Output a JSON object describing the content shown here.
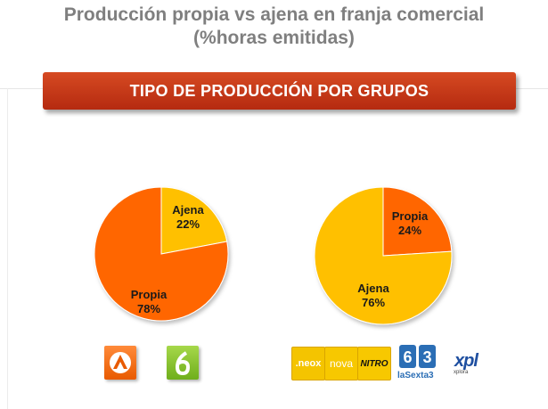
{
  "title_line1": "Producción propia vs ajena en franja comercial",
  "title_line2": "(%horas emitidas)",
  "banner": "TIPO DE PRODUCCIÓN POR GRUPOS",
  "chart_data": [
    {
      "type": "pie",
      "slices": [
        {
          "label": "Ajena",
          "value": 22,
          "value_label": "22%",
          "color": "#ffc000"
        },
        {
          "label": "Propia",
          "value": 78,
          "value_label": "78%",
          "color": "#ff6600"
        }
      ]
    },
    {
      "type": "pie",
      "slices": [
        {
          "label": "Propia",
          "value": 24,
          "value_label": "24%",
          "color": "#ff6600"
        },
        {
          "label": "Ajena",
          "value": 76,
          "value_label": "76%",
          "color": "#ffc000"
        }
      ]
    }
  ],
  "logos": {
    "left": [
      "antena3-logo",
      "la6-logo"
    ],
    "right": {
      "neox": ".neox",
      "nova": "nova",
      "nitro": "NITRO",
      "lasexta3_number": "6 3",
      "lasexta3": "laSexta3",
      "xpl": "xpl",
      "xplora": "xplora"
    }
  }
}
